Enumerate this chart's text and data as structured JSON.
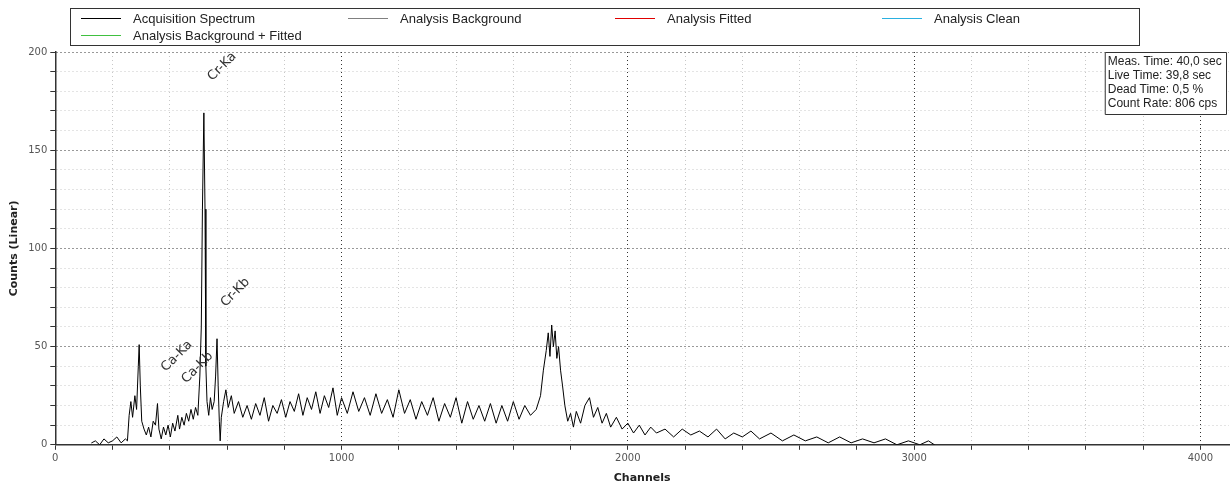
{
  "chart_data": {
    "type": "line",
    "xlabel": "Channels",
    "ylabel": "Counts (Linear)",
    "xlim": [
      0,
      4100
    ],
    "xticks": [
      0,
      {
        "value": 200,
        "label": null
      },
      {
        "value": 400,
        "label": null
      },
      {
        "value": 600,
        "label": null
      },
      {
        "value": 800,
        "label": null
      },
      1000,
      {
        "value": 1200,
        "label": null
      },
      {
        "value": 1400,
        "label": null
      },
      {
        "value": 1600,
        "label": null
      },
      {
        "value": 1800,
        "label": null
      },
      2000,
      {
        "value": 2200,
        "label": null
      },
      {
        "value": 2400,
        "label": null
      },
      {
        "value": 2600,
        "label": null
      },
      {
        "value": 2800,
        "label": null
      },
      3000,
      {
        "value": 3200,
        "label": null
      },
      {
        "value": 3400,
        "label": null
      },
      {
        "value": 3600,
        "label": null
      },
      {
        "value": 3800,
        "label": null
      },
      4000
    ],
    "ylim": [
      0,
      200
    ],
    "yticks": [
      0,
      {
        "value": 10,
        "label": null
      },
      {
        "value": 20,
        "label": null
      },
      {
        "value": 30,
        "label": null
      },
      {
        "value": 40,
        "label": null
      },
      50,
      {
        "value": 60,
        "label": null
      },
      {
        "value": 70,
        "label": null
      },
      {
        "value": 80,
        "label": null
      },
      {
        "value": 90,
        "label": null
      },
      100,
      {
        "value": 110,
        "label": null
      },
      {
        "value": 120,
        "label": null
      },
      {
        "value": 130,
        "label": null
      },
      {
        "value": 140,
        "label": null
      },
      150,
      {
        "value": 160,
        "label": null
      },
      {
        "value": 170,
        "label": null
      },
      {
        "value": 180,
        "label": null
      },
      {
        "value": 190,
        "label": null
      },
      200
    ],
    "grid": true,
    "legend": "top",
    "marker": "none",
    "line_style": "solid",
    "series": [
      {
        "name": "Acquisition Spectrum",
        "color": "#000000",
        "x": [
          127,
          140,
          155,
          170,
          185,
          200,
          215,
          230,
          245,
          252,
          258,
          264,
          270,
          278,
          284,
          290,
          293,
          297,
          302,
          310,
          318,
          326,
          334,
          342,
          350,
          357,
          362,
          370,
          378,
          386,
          394,
          402,
          410,
          418,
          428,
          434,
          442,
          450,
          458,
          466,
          474,
          482,
          490,
          498,
          505,
          510,
          514,
          519,
          523,
          526,
          530,
          536,
          542,
          548,
          555,
          560,
          565,
          569,
          573,
          576,
          580,
          588,
          596,
          604,
          615,
          625,
          640,
          655,
          670,
          685,
          700,
          715,
          730,
          745,
          760,
          775,
          790,
          805,
          820,
          835,
          850,
          865,
          880,
          895,
          910,
          925,
          940,
          955,
          970,
          985,
          1000,
          1020,
          1040,
          1060,
          1080,
          1100,
          1120,
          1140,
          1160,
          1180,
          1200,
          1220,
          1240,
          1260,
          1280,
          1300,
          1320,
          1340,
          1360,
          1380,
          1400,
          1420,
          1440,
          1460,
          1480,
          1500,
          1520,
          1540,
          1560,
          1580,
          1600,
          1620,
          1640,
          1660,
          1680,
          1695,
          1705,
          1715,
          1722,
          1728,
          1734,
          1740,
          1746,
          1752,
          1758,
          1765,
          1772,
          1780,
          1790,
          1800,
          1810,
          1820,
          1835,
          1850,
          1866,
          1880,
          1895,
          1910,
          1925,
          1940,
          1960,
          1980,
          2000,
          2020,
          2040,
          2060,
          2080,
          2100,
          2130,
          2160,
          2190,
          2220,
          2250,
          2280,
          2310,
          2340,
          2370,
          2400,
          2430,
          2460,
          2500,
          2540,
          2580,
          2620,
          2660,
          2700,
          2740,
          2780,
          2820,
          2860,
          2900,
          2940,
          2980,
          3020,
          3050,
          3071
        ],
        "values": [
          1,
          2,
          0,
          3,
          1,
          2,
          4,
          1,
          3,
          2,
          15,
          22,
          14,
          25,
          18,
          40,
          51,
          30,
          12,
          8,
          5,
          9,
          4,
          12,
          10,
          21,
          8,
          3,
          9,
          5,
          10,
          4,
          11,
          7,
          15,
          8,
          14,
          10,
          16,
          12,
          18,
          13,
          19,
          15,
          35,
          60,
          120,
          169,
          120,
          40,
          22,
          15,
          24,
          18,
          22,
          35,
          54,
          30,
          12,
          2,
          14,
          22,
          28,
          19,
          25,
          16,
          22,
          14,
          20,
          13,
          21,
          15,
          24,
          12,
          20,
          16,
          23,
          14,
          22,
          17,
          26,
          15,
          24,
          18,
          27,
          16,
          25,
          19,
          29,
          15,
          24,
          16,
          27,
          17,
          24,
          15,
          26,
          16,
          23,
          14,
          28,
          16,
          23,
          13,
          22,
          15,
          24,
          12,
          21,
          14,
          24,
          11,
          22,
          13,
          20,
          12,
          21,
          11,
          20,
          12,
          22,
          13,
          20,
          15,
          18,
          25,
          38,
          48,
          57,
          45,
          61,
          50,
          58,
          44,
          50,
          38,
          30,
          20,
          12,
          16,
          9,
          17,
          11,
          20,
          24,
          14,
          19,
          11,
          16,
          9,
          14,
          8,
          11,
          6,
          10,
          5,
          9,
          6,
          8,
          4,
          8,
          5,
          7,
          4,
          8,
          3,
          6,
          4,
          7,
          3,
          6,
          2,
          5,
          2,
          4,
          1,
          4,
          1,
          3,
          1,
          3,
          0,
          2,
          0,
          2,
          0
        ]
      },
      {
        "name": "Analysis Background",
        "color": "#808080"
      },
      {
        "name": "Analysis Fitted",
        "color": "#e00000"
      },
      {
        "name": "Analysis Clean",
        "color": "#2ab0e0"
      },
      {
        "name": "Analysis Background + Fitted",
        "color": "#40c040"
      }
    ],
    "annotations": [
      {
        "text": "Cr-Ka",
        "x": 519,
        "y": 169
      },
      {
        "text": "Ca-Ka",
        "x": 357,
        "y": 21
      },
      {
        "text": "Ca-Kb",
        "x": 428,
        "y": 15
      },
      {
        "text": "Cr-Kb",
        "x": 565,
        "y": 54
      },
      "Meas. Time: 40,0 sec",
      "Live Time: 39,8 sec",
      "Dead Time: 0,5 %",
      "Count Rate: 806 cps"
    ]
  }
}
